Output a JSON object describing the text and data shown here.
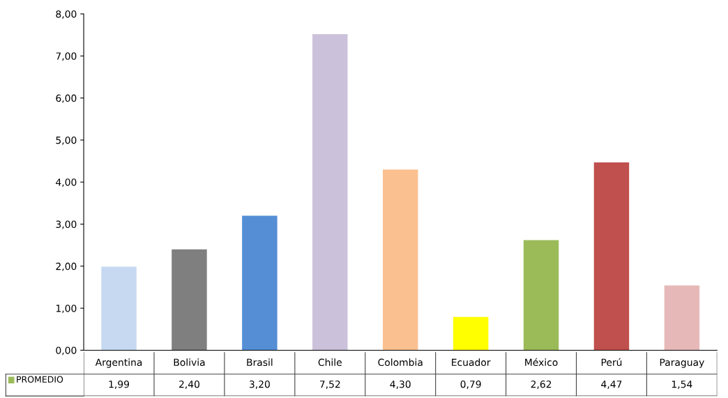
{
  "chart_data": {
    "type": "bar",
    "categories": [
      "Argentina",
      "Bolivia",
      "Brasil",
      "Chile",
      "Colombia",
      "Ecuador",
      "México",
      "Perú",
      "Paraguay"
    ],
    "series": [
      {
        "name": "PROMEDIO",
        "color": "#9bbb59",
        "values": [
          1.99,
          2.4,
          3.2,
          7.52,
          4.3,
          0.79,
          2.62,
          4.47,
          1.54
        ],
        "colors": [
          "#c6d9f1",
          "#7f7f7f",
          "#558ed5",
          "#ccc1da",
          "#fac090",
          "#ffff00",
          "#9bbb59",
          "#c0504d",
          "#e6b9b8"
        ],
        "value_labels": [
          "1,99",
          "2,40",
          "3,20",
          "7,52",
          "4,30",
          "0,79",
          "2,62",
          "4,47",
          "1,54"
        ]
      }
    ],
    "ylim": [
      0,
      8
    ],
    "yticks": [
      {
        "value": 0,
        "label": "0,00"
      },
      {
        "value": 1,
        "label": "1,00"
      },
      {
        "value": 2,
        "label": "2,00"
      },
      {
        "value": 3,
        "label": "3,00"
      },
      {
        "value": 4,
        "label": "4,00"
      },
      {
        "value": 5,
        "label": "5,00"
      },
      {
        "value": 6,
        "label": "6,00"
      },
      {
        "value": 7,
        "label": "7,00"
      },
      {
        "value": 8,
        "label": "8,00"
      }
    ],
    "grid": false
  }
}
